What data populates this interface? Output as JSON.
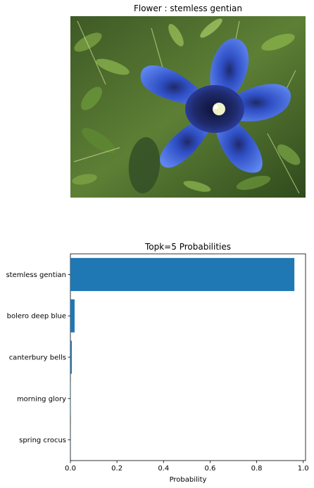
{
  "image_panel": {
    "title": "Flower : stemless gentian"
  },
  "chart_data": {
    "type": "bar",
    "orientation": "horizontal",
    "title": "Topk=5 Probabilities",
    "xlabel": "Probability",
    "ylabel": "",
    "categories": [
      "stemless gentian",
      "bolero deep blue",
      "canterbury bells",
      "morning glory",
      "spring crocus"
    ],
    "values": [
      0.962,
      0.018,
      0.006,
      0.001,
      0.0005
    ],
    "xlim": [
      0,
      1.01
    ],
    "xticks": [
      "0.0",
      "0.2",
      "0.4",
      "0.6",
      "0.8",
      "1.0"
    ],
    "xtick_values": [
      0,
      0.2,
      0.4,
      0.6,
      0.8,
      1.0
    ],
    "bar_color": "#1f77b4",
    "grid": false,
    "legend": "none"
  }
}
